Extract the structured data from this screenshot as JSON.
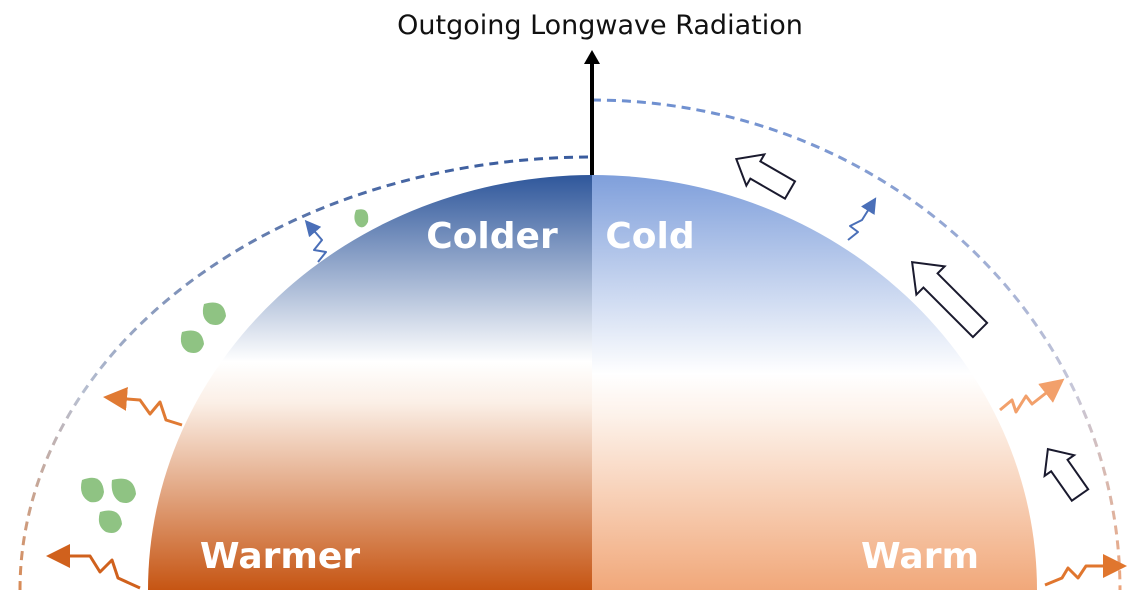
{
  "title": "Outgoing Longwave Radiation",
  "left": {
    "top_label": "Colder",
    "bottom_label": "Warmer"
  },
  "right": {
    "top_label": "Cold",
    "bottom_label": "Warm"
  }
}
